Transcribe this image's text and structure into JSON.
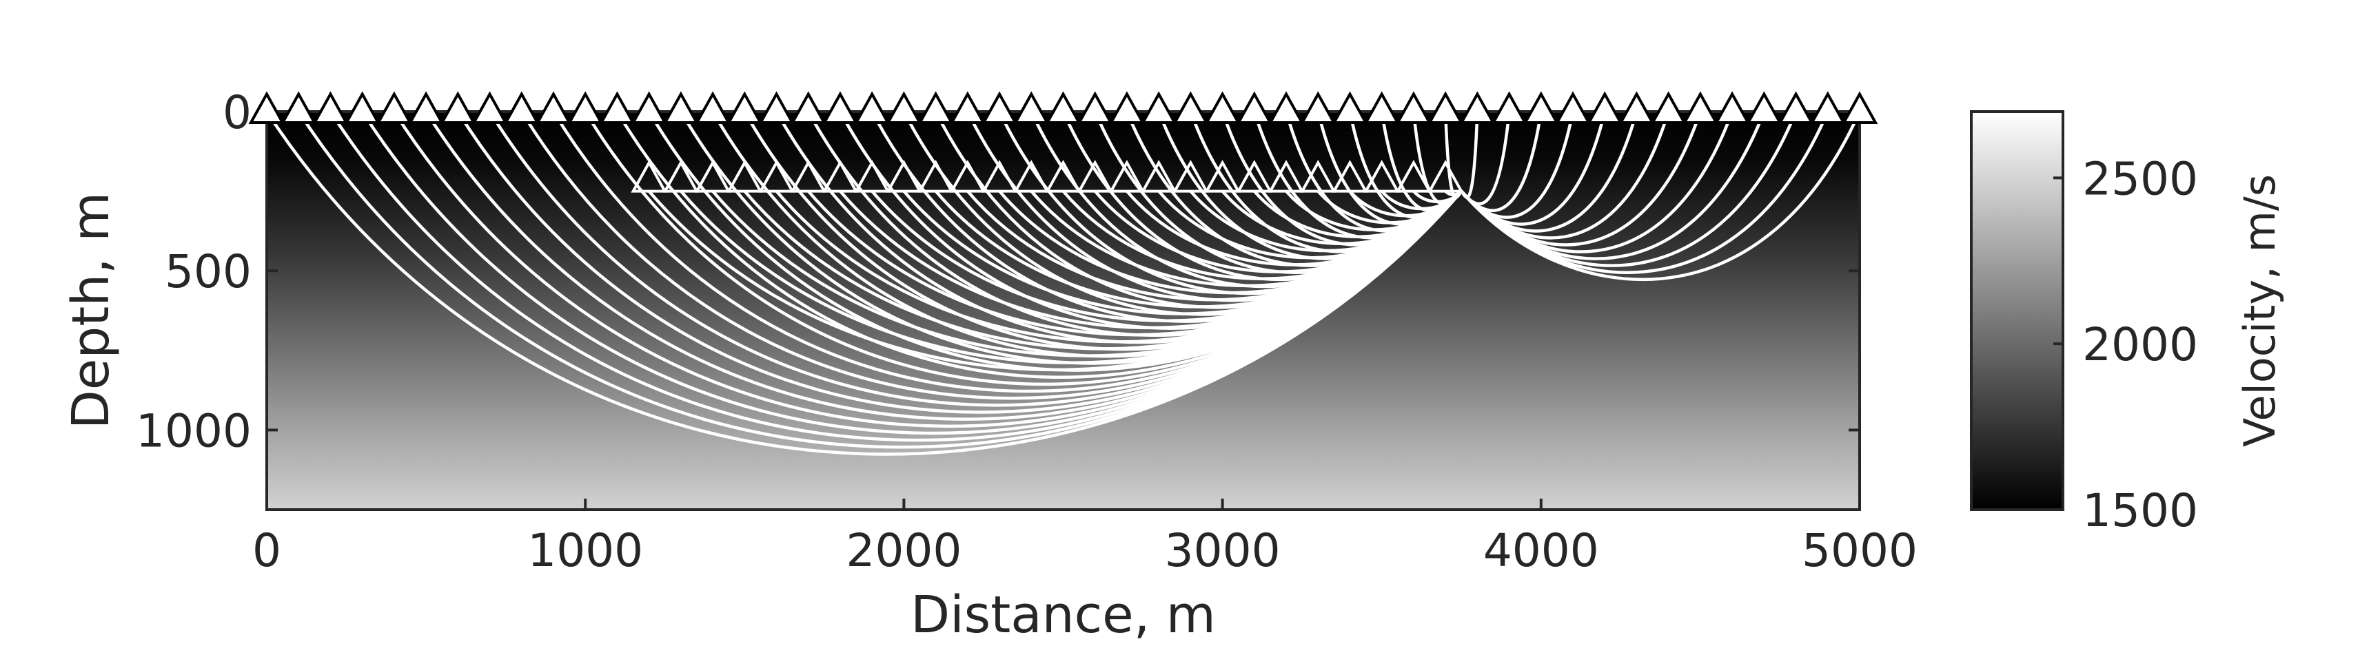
{
  "chart_data": {
    "type": "heatmap",
    "title": "",
    "xlabel": "Distance, m",
    "ylabel": "Depth, m",
    "xlim": [
      0,
      5000
    ],
    "ylim": [
      0,
      1250
    ],
    "y_reversed": true,
    "x_ticks": [
      "0",
      "1000",
      "2000",
      "3000",
      "4000",
      "5000"
    ],
    "x_tick_values": [
      0,
      1000,
      2000,
      3000,
      4000,
      5000
    ],
    "y_ticks": [
      "0",
      "500",
      "1000"
    ],
    "y_tick_values": [
      0,
      500,
      1000
    ],
    "colorbar": {
      "label": "Velocity, m/s",
      "range": [
        1500,
        2700
      ],
      "ticks": [
        "1500",
        "2000",
        "2500"
      ],
      "tick_values": [
        1500,
        2000,
        2500
      ],
      "colormap": "gray",
      "low_color": "#000000",
      "high_color": "#ffffff"
    },
    "velocity_model": {
      "type": "linear-gradient-with-depth",
      "v_at_surface": 1500,
      "v_at_bottom": 2650,
      "bottom_depth": 1250
    },
    "source": {
      "x": 3750,
      "depth": 250
    },
    "surface_receivers": {
      "depth": 0,
      "x_start": 0,
      "x_end": 5000,
      "spacing": 100
    },
    "borehole_receivers": {
      "depth": 250,
      "x_start": 1200,
      "x_end": 3750,
      "spacing": 100
    },
    "rays": {
      "color": "#ffffff",
      "description": "raypaths from source to each surface and borehole receiver"
    }
  }
}
